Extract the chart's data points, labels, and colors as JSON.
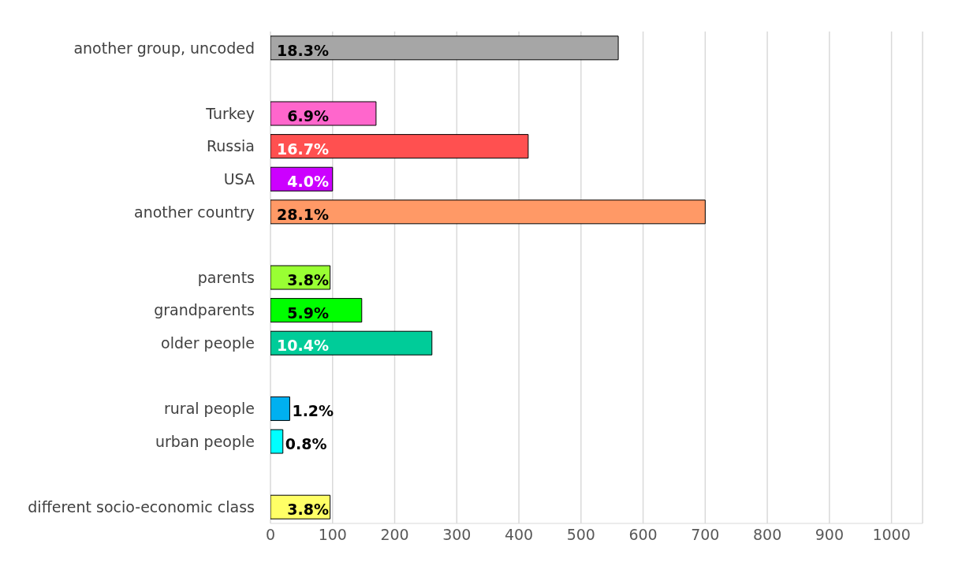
{
  "chart_data": {
    "type": "bar",
    "orientation": "horizontal",
    "categories": [
      "another group, uncoded",
      null,
      "Turkey",
      "Russia",
      "USA",
      "another country",
      null,
      "parents",
      "grandparents",
      "older people",
      null,
      "rural people",
      "urban people",
      null,
      "different socio-economic class"
    ],
    "values": [
      560,
      null,
      170,
      415,
      100,
      700,
      null,
      96,
      147,
      260,
      null,
      31,
      20,
      null,
      96
    ],
    "colors": [
      "#a6a6a6",
      null,
      "#ff66cc",
      "#ff5050",
      "#cc00ff",
      "#ff9966",
      null,
      "#99ff33",
      "#00ff00",
      "#00cc99",
      null,
      "#00b0f0",
      "#00ffff",
      null,
      "#ffff66"
    ],
    "annotations": [
      {
        "text": "18.3%",
        "y": "another group, uncoded"
      },
      {
        "text": "6.9%",
        "y": "Turkey"
      },
      {
        "text": "16.7%",
        "y": "Russia"
      },
      {
        "text": "4.0%",
        "y": "USA"
      },
      {
        "text": "28.1%",
        "y": "another country"
      },
      {
        "text": "3.8%",
        "y": "parents"
      },
      {
        "text": "5.9%",
        "y": "grandparents"
      },
      {
        "text": "10.4%",
        "y": "older people"
      },
      {
        "text": "1.2%",
        "x": 31,
        "y": "rural people"
      },
      {
        "text": "0.8%",
        "x": 20,
        "y": "urban people"
      },
      {
        "text": "3.8%",
        "y": "different socio-economic class"
      }
    ],
    "xlim": [
      0,
      1050
    ],
    "xticks": [
      0,
      100,
      200,
      300,
      400,
      500,
      600,
      700,
      800,
      900,
      1000
    ],
    "grid": "x"
  }
}
